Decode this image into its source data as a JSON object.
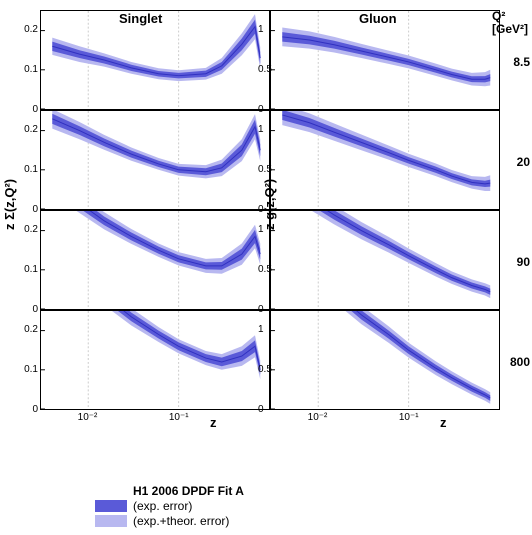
{
  "titles": {
    "left": "Singlet",
    "right": "Gluon"
  },
  "ylabels": {
    "left": "z Σ(z,Q²)",
    "right": "z g(z,Q²)"
  },
  "xlabel": "z",
  "q2header": "Q²\n[GeV²]",
  "q2vals": [
    "8.5",
    "20",
    "90",
    "800"
  ],
  "legend": {
    "title": "H1 2006 DPDF Fit A",
    "inner": "(exp. error)",
    "outer": "(exp.+theor. error)"
  },
  "colors": {
    "inner": "#5a5ad8",
    "outer": "#b8b8f0",
    "line": "#3030c0",
    "grid": "#ccc",
    "axis": "#000"
  },
  "xlog": {
    "min": 0.003,
    "max": 1,
    "ticks": [
      0.01,
      0.1
    ],
    "tickLabels": [
      "10⁻²",
      "10⁻¹"
    ]
  },
  "panels": {
    "singlet": {
      "ylim": [
        0,
        0.25
      ],
      "yticks": [
        0,
        0.1,
        0.2
      ],
      "rows": [
        {
          "z": [
            0.004,
            0.008,
            0.015,
            0.03,
            0.06,
            0.1,
            0.2,
            0.3,
            0.5,
            0.7,
            0.8
          ],
          "c": [
            0.16,
            0.14,
            0.125,
            0.105,
            0.09,
            0.085,
            0.09,
            0.11,
            0.165,
            0.21,
            0.13
          ],
          "ei": [
            0.012,
            0.01,
            0.009,
            0.008,
            0.007,
            0.007,
            0.008,
            0.01,
            0.015,
            0.018,
            0.015
          ],
          "eo": [
            0.022,
            0.02,
            0.017,
            0.015,
            0.014,
            0.014,
            0.015,
            0.02,
            0.028,
            0.032,
            0.028
          ]
        },
        {
          "z": [
            0.004,
            0.008,
            0.015,
            0.03,
            0.06,
            0.1,
            0.2,
            0.3,
            0.5,
            0.7,
            0.8
          ],
          "c": [
            0.23,
            0.2,
            0.17,
            0.14,
            0.115,
            0.1,
            0.095,
            0.105,
            0.15,
            0.21,
            0.15
          ],
          "ei": [
            0.013,
            0.011,
            0.01,
            0.009,
            0.008,
            0.008,
            0.009,
            0.011,
            0.015,
            0.018,
            0.015
          ],
          "eo": [
            0.025,
            0.022,
            0.019,
            0.017,
            0.015,
            0.015,
            0.017,
            0.021,
            0.028,
            0.032,
            0.028
          ]
        },
        {
          "z": [
            0.004,
            0.008,
            0.015,
            0.03,
            0.06,
            0.1,
            0.2,
            0.3,
            0.5,
            0.7,
            0.8
          ],
          "c": [
            0.32,
            0.27,
            0.225,
            0.185,
            0.15,
            0.128,
            0.11,
            0.11,
            0.14,
            0.185,
            0.14
          ],
          "ei": [
            0.015,
            0.013,
            0.011,
            0.01,
            0.009,
            0.009,
            0.009,
            0.01,
            0.014,
            0.017,
            0.014
          ],
          "eo": [
            0.028,
            0.025,
            0.022,
            0.019,
            0.017,
            0.017,
            0.018,
            0.02,
            0.027,
            0.03,
            0.027
          ]
        },
        {
          "z": [
            0.004,
            0.008,
            0.015,
            0.03,
            0.06,
            0.1,
            0.2,
            0.3,
            0.5,
            0.7,
            0.8
          ],
          "c": [
            0.42,
            0.35,
            0.29,
            0.235,
            0.19,
            0.16,
            0.13,
            0.12,
            0.135,
            0.16,
            0.1
          ],
          "ei": [
            0.017,
            0.015,
            0.013,
            0.011,
            0.01,
            0.01,
            0.01,
            0.011,
            0.013,
            0.015,
            0.012
          ],
          "eo": [
            0.032,
            0.028,
            0.025,
            0.022,
            0.019,
            0.018,
            0.018,
            0.02,
            0.025,
            0.028,
            0.024
          ]
        }
      ]
    },
    "gluon": {
      "ylim": [
        0,
        1.25
      ],
      "yticks": [
        0,
        0.5,
        1
      ],
      "rows": [
        {
          "z": [
            0.004,
            0.008,
            0.015,
            0.03,
            0.06,
            0.1,
            0.2,
            0.3,
            0.5,
            0.7,
            0.8
          ],
          "c": [
            0.92,
            0.88,
            0.82,
            0.74,
            0.66,
            0.6,
            0.5,
            0.44,
            0.38,
            0.38,
            0.4
          ],
          "ei": [
            0.06,
            0.055,
            0.05,
            0.045,
            0.042,
            0.04,
            0.038,
            0.036,
            0.038,
            0.04,
            0.045
          ],
          "eo": [
            0.12,
            0.11,
            0.1,
            0.09,
            0.085,
            0.082,
            0.078,
            0.075,
            0.08,
            0.09,
            0.1
          ]
        },
        {
          "z": [
            0.004,
            0.008,
            0.015,
            0.03,
            0.06,
            0.1,
            0.2,
            0.3,
            0.5,
            0.7,
            0.8
          ],
          "c": [
            1.2,
            1.1,
            0.98,
            0.85,
            0.72,
            0.62,
            0.5,
            0.42,
            0.34,
            0.32,
            0.33
          ],
          "ei": [
            0.065,
            0.06,
            0.055,
            0.05,
            0.045,
            0.042,
            0.04,
            0.038,
            0.038,
            0.04,
            0.045
          ],
          "eo": [
            0.13,
            0.12,
            0.11,
            0.1,
            0.09,
            0.085,
            0.08,
            0.078,
            0.08,
            0.09,
            0.1
          ]
        },
        {
          "z": [
            0.004,
            0.008,
            0.015,
            0.03,
            0.06,
            0.1,
            0.2,
            0.3,
            0.5,
            0.7,
            0.8
          ],
          "c": [
            1.6,
            1.4,
            1.2,
            1.0,
            0.82,
            0.68,
            0.5,
            0.4,
            0.3,
            0.25,
            0.22
          ],
          "ei": [
            0.07,
            0.065,
            0.06,
            0.055,
            0.05,
            0.045,
            0.042,
            0.04,
            0.038,
            0.038,
            0.04
          ],
          "eo": [
            0.14,
            0.13,
            0.12,
            0.11,
            0.1,
            0.092,
            0.085,
            0.08,
            0.078,
            0.078,
            0.082
          ]
        },
        {
          "z": [
            0.004,
            0.008,
            0.015,
            0.03,
            0.06,
            0.1,
            0.2,
            0.3,
            0.5,
            0.7,
            0.8
          ],
          "c": [
            2.2,
            1.85,
            1.5,
            1.2,
            0.95,
            0.75,
            0.52,
            0.4,
            0.26,
            0.18,
            0.14
          ],
          "ei": [
            0.08,
            0.072,
            0.065,
            0.058,
            0.052,
            0.048,
            0.044,
            0.04,
            0.038,
            0.036,
            0.036
          ],
          "eo": [
            0.16,
            0.145,
            0.13,
            0.118,
            0.105,
            0.095,
            0.088,
            0.082,
            0.076,
            0.074,
            0.074
          ]
        }
      ]
    }
  }
}
